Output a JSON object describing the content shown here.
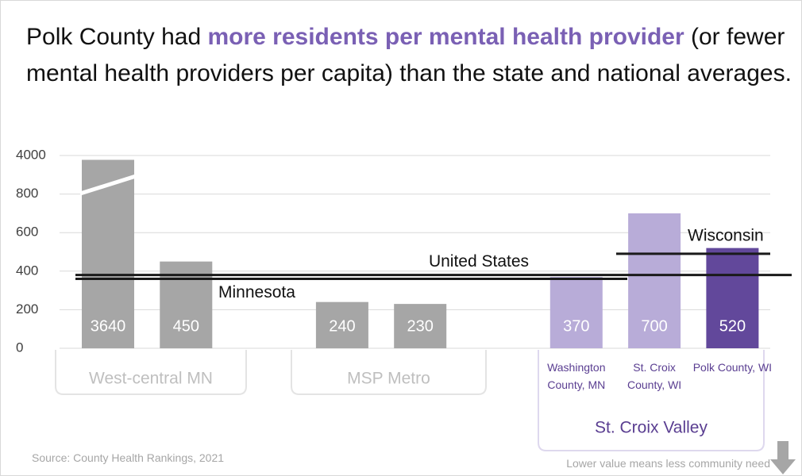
{
  "chart_data": {
    "type": "bar",
    "title_parts": [
      "Polk County had ",
      "more residents per mental health provider",
      " (or fewer mental health providers per capita) than the state and national averages."
    ],
    "categories": [
      null,
      null,
      null,
      null,
      "Washington County, MN",
      "St. Croix County, WI",
      "Polk County, WI"
    ],
    "series": [
      {
        "values": [
          3640,
          450,
          240,
          230,
          370,
          700,
          520
        ],
        "colors": [
          "#a6a6a6",
          "#a6a6a6",
          "#a6a6a6",
          "#a6a6a6",
          "#b8acd8",
          "#b8acd8",
          "#62489b"
        ]
      }
    ],
    "groups": [
      "West-central MN",
      "MSP Metro",
      "St. Croix Valley"
    ],
    "reference_lines": [
      {
        "name": "United States",
        "value": 380
      },
      {
        "name": "Minnesota",
        "value": 360
      },
      {
        "name": "Wisconsin",
        "value": 490
      }
    ],
    "ylim": [
      0,
      4000
    ],
    "yticks": [
      0,
      200,
      400,
      600,
      800,
      4000
    ],
    "grid": true,
    "source": "Source: County Health Rankings, 2021",
    "note": "Lower value means less community need"
  }
}
